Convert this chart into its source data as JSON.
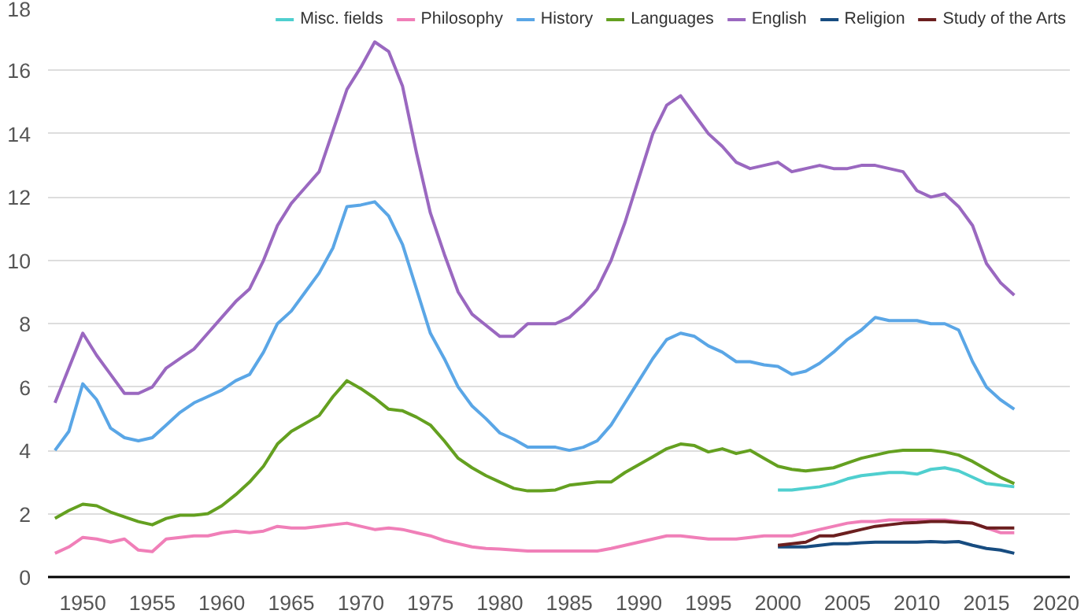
{
  "chart_data": {
    "type": "line",
    "x": [
      1948,
      1949,
      1950,
      1951,
      1952,
      1953,
      1954,
      1955,
      1956,
      1957,
      1958,
      1959,
      1960,
      1961,
      1962,
      1963,
      1964,
      1965,
      1966,
      1967,
      1968,
      1969,
      1970,
      1971,
      1972,
      1973,
      1974,
      1975,
      1976,
      1977,
      1978,
      1979,
      1980,
      1981,
      1982,
      1983,
      1984,
      1985,
      1986,
      1987,
      1988,
      1989,
      1990,
      1991,
      1992,
      1993,
      1994,
      1995,
      1996,
      1997,
      1998,
      1999,
      2000,
      2001,
      2002,
      2003,
      2004,
      2005,
      2006,
      2007,
      2008,
      2009,
      2010,
      2011,
      2012,
      2013,
      2014,
      2015,
      2016,
      2017
    ],
    "series": [
      {
        "name": "Misc. fields",
        "color": "#4fcfcf",
        "x": [
          2000,
          2001,
          2002,
          2003,
          2004,
          2005,
          2006,
          2007,
          2008,
          2009,
          2010,
          2011,
          2012,
          2013,
          2014,
          2015,
          2016,
          2017
        ],
        "values": [
          2.75,
          2.75,
          2.8,
          2.85,
          2.95,
          3.1,
          3.2,
          3.25,
          3.3,
          3.3,
          3.25,
          3.4,
          3.45,
          3.35,
          3.15,
          2.95,
          2.9,
          2.85
        ]
      },
      {
        "name": "Philosophy",
        "color": "#f07fb8",
        "values": [
          0.75,
          0.95,
          1.25,
          1.2,
          1.1,
          1.2,
          0.85,
          0.8,
          1.2,
          1.25,
          1.3,
          1.3,
          1.4,
          1.45,
          1.4,
          1.45,
          1.6,
          1.55,
          1.55,
          1.6,
          1.65,
          1.7,
          1.6,
          1.5,
          1.55,
          1.5,
          1.4,
          1.3,
          1.15,
          1.05,
          0.95,
          0.9,
          0.88,
          0.85,
          0.82,
          0.82,
          0.82,
          0.82,
          0.82,
          0.82,
          0.9,
          1.0,
          1.1,
          1.2,
          1.3,
          1.3,
          1.25,
          1.2,
          1.2,
          1.2,
          1.25,
          1.3,
          1.3,
          1.3,
          1.4,
          1.5,
          1.6,
          1.7,
          1.75,
          1.75,
          1.8,
          1.8,
          1.8,
          1.8,
          1.8,
          1.75,
          1.7,
          1.55,
          1.4,
          1.4
        ]
      },
      {
        "name": "History",
        "color": "#5aa6e6",
        "values": [
          4.0,
          4.6,
          6.1,
          5.6,
          4.7,
          4.4,
          4.3,
          4.4,
          4.8,
          5.2,
          5.5,
          5.7,
          5.9,
          6.2,
          6.4,
          7.1,
          8.0,
          8.4,
          9.0,
          9.6,
          10.4,
          11.7,
          11.75,
          11.85,
          11.4,
          10.5,
          9.1,
          7.7,
          6.9,
          6.0,
          5.4,
          5.0,
          4.55,
          4.35,
          4.1,
          4.1,
          4.1,
          4.0,
          4.1,
          4.3,
          4.8,
          5.5,
          6.2,
          6.9,
          7.5,
          7.7,
          7.6,
          7.3,
          7.1,
          6.8,
          6.8,
          6.7,
          6.65,
          6.4,
          6.5,
          6.75,
          7.1,
          7.5,
          7.8,
          8.2,
          8.1,
          8.1,
          8.1,
          8.0,
          8.0,
          7.8,
          6.8,
          6.0,
          5.6,
          5.3
        ]
      },
      {
        "name": "Languages",
        "color": "#64a020",
        "values": [
          1.85,
          2.1,
          2.3,
          2.25,
          2.05,
          1.9,
          1.75,
          1.65,
          1.85,
          1.95,
          1.95,
          2.0,
          2.25,
          2.6,
          3.0,
          3.5,
          4.2,
          4.6,
          4.85,
          5.1,
          5.7,
          6.2,
          5.95,
          5.65,
          5.3,
          5.25,
          5.05,
          4.8,
          4.3,
          3.75,
          3.45,
          3.2,
          3.0,
          2.8,
          2.72,
          2.72,
          2.75,
          2.9,
          2.95,
          3.0,
          3.0,
          3.3,
          3.55,
          3.8,
          4.05,
          4.2,
          4.15,
          3.95,
          4.05,
          3.9,
          4.0,
          3.75,
          3.5,
          3.4,
          3.35,
          3.4,
          3.45,
          3.6,
          3.75,
          3.85,
          3.95,
          4.0,
          4.0,
          4.0,
          3.95,
          3.85,
          3.65,
          3.4,
          3.15,
          2.95
        ]
      },
      {
        "name": "English",
        "color": "#9a68c0",
        "values": [
          5.5,
          6.6,
          7.7,
          7.0,
          6.4,
          5.8,
          5.8,
          6.0,
          6.6,
          6.9,
          7.2,
          7.7,
          8.2,
          8.7,
          9.1,
          10.0,
          11.1,
          11.8,
          12.3,
          12.8,
          14.1,
          15.4,
          16.1,
          16.9,
          16.6,
          15.5,
          13.4,
          11.5,
          10.2,
          9.0,
          8.3,
          7.95,
          7.6,
          7.6,
          8.0,
          8.0,
          8.0,
          8.2,
          8.6,
          9.1,
          10.0,
          11.2,
          12.6,
          14.0,
          14.9,
          15.2,
          14.6,
          14.0,
          13.6,
          13.1,
          12.9,
          13.0,
          13.1,
          12.8,
          12.9,
          13.0,
          12.9,
          12.9,
          13.0,
          13.0,
          12.9,
          12.8,
          12.2,
          12.0,
          12.1,
          11.7,
          11.1,
          9.9,
          9.3,
          8.9
        ]
      },
      {
        "name": "Religion",
        "color": "#174c80",
        "x": [
          2000,
          2001,
          2002,
          2003,
          2004,
          2005,
          2006,
          2007,
          2008,
          2009,
          2010,
          2011,
          2012,
          2013,
          2014,
          2015,
          2016,
          2017
        ],
        "values": [
          0.95,
          0.95,
          0.95,
          1.0,
          1.05,
          1.05,
          1.08,
          1.1,
          1.1,
          1.1,
          1.1,
          1.12,
          1.1,
          1.12,
          1.0,
          0.9,
          0.85,
          0.75
        ]
      },
      {
        "name": "Study of the Arts",
        "color": "#6b1f1f",
        "x": [
          2000,
          2001,
          2002,
          2003,
          2004,
          2005,
          2006,
          2007,
          2008,
          2009,
          2010,
          2011,
          2012,
          2013,
          2014,
          2015,
          2016,
          2017
        ],
        "values": [
          1.0,
          1.05,
          1.1,
          1.3,
          1.3,
          1.4,
          1.5,
          1.6,
          1.65,
          1.7,
          1.72,
          1.75,
          1.75,
          1.72,
          1.7,
          1.55,
          1.55,
          1.55
        ]
      }
    ],
    "xlim": [
      1947.5,
      2021
    ],
    "xticks": [
      1950,
      1955,
      1960,
      1965,
      1970,
      1975,
      1980,
      1985,
      1990,
      1995,
      2000,
      2005,
      2010,
      2015,
      2020
    ],
    "ylim": [
      0,
      18
    ],
    "yticks": [
      0,
      2,
      4,
      6,
      8,
      10,
      12,
      14,
      16,
      18
    ],
    "grid": "y",
    "legend": "top"
  }
}
